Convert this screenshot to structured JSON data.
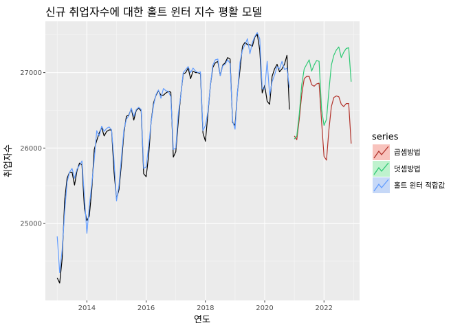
{
  "chart_data": {
    "type": "line",
    "title": "신규 취업자수에 대한 홀트 윈터 지수 평활 모델",
    "xlabel": "연도",
    "ylabel": "취업자수",
    "xlim": [
      2012.6,
      2023.2
    ],
    "ylim": [
      23980,
      27680
    ],
    "x_ticks": [
      2014,
      2016,
      2018,
      2020,
      2022
    ],
    "y_ticks": [
      25000,
      26000,
      27000
    ],
    "grid": true,
    "legend": {
      "title": "series",
      "position": "right",
      "entries": [
        "곱셈방법",
        "덧셈방법",
        "홀트 윈터 적합값"
      ]
    },
    "series": [
      {
        "key": "observed",
        "color": "#000000",
        "x_start": 2013.0,
        "x_step": 0.08333,
        "values": [
          24280,
          24210,
          24530,
          25300,
          25600,
          25680,
          25680,
          25510,
          25700,
          25800,
          25780,
          25200,
          25040,
          25100,
          25450,
          25980,
          26100,
          26200,
          26270,
          26160,
          26220,
          26240,
          26240,
          25680,
          25330,
          25450,
          25800,
          26200,
          26420,
          26440,
          26520,
          26370,
          26500,
          26530,
          26490,
          25660,
          25620,
          25900,
          26350,
          26600,
          26700,
          26760,
          26700,
          26700,
          26730,
          26750,
          26740,
          25880,
          25950,
          26350,
          26700,
          26980,
          27000,
          27060,
          26920,
          27020,
          27000,
          27000,
          26980,
          26200,
          26090,
          26450,
          26830,
          27070,
          27130,
          27150,
          26960,
          27100,
          27130,
          27200,
          27180,
          26340,
          26300,
          26750,
          27040,
          27350,
          27400,
          27370,
          27370,
          27350,
          27470,
          27510,
          27300,
          26730,
          26830,
          26620,
          26580,
          26950,
          27050,
          27110,
          27010,
          27050,
          27110,
          27230,
          26510
        ]
      },
      {
        "key": "fitted",
        "name": "홀트 윈터 적합값",
        "color": "#619CFF",
        "x_start": 2013.0,
        "x_step": 0.08333,
        "values": [
          24830,
          24350,
          24650,
          25150,
          25550,
          25680,
          25730,
          25600,
          25720,
          25770,
          25830,
          25350,
          24870,
          25230,
          25520,
          25850,
          26230,
          26160,
          26290,
          26220,
          26260,
          26280,
          26240,
          25830,
          25300,
          25510,
          25880,
          26240,
          26380,
          26430,
          26530,
          26420,
          26510,
          26540,
          26510,
          25730,
          25750,
          26030,
          26340,
          26570,
          26710,
          26770,
          26660,
          26790,
          26760,
          26750,
          26680,
          25980,
          26000,
          26450,
          26690,
          27000,
          27040,
          27080,
          27000,
          27060,
          27020,
          27000,
          27010,
          26230,
          26300,
          26480,
          26830,
          27100,
          27170,
          27180,
          26960,
          27090,
          27110,
          27170,
          27120,
          26360,
          26250,
          26740,
          27140,
          27300,
          27370,
          27450,
          27250,
          27400,
          27480,
          27530,
          27450,
          26790,
          26780,
          27150,
          26700,
          26880,
          26970,
          27080,
          27050,
          27150,
          27040,
          27060,
          26800
        ]
      },
      {
        "key": "multiplicative",
        "name": "곱셈방법",
        "color": "#B2322A",
        "x_start": 2021.0,
        "x_step": 0.08333,
        "values": [
          26160,
          26110,
          26380,
          26710,
          26920,
          26950,
          26950,
          26840,
          26820,
          26850,
          26860,
          26360,
          25890,
          25840,
          26240,
          26550,
          26670,
          26690,
          26680,
          26580,
          26550,
          26590,
          26590,
          26060
        ]
      },
      {
        "key": "additive",
        "name": "덧셈방법",
        "color": "#2DC973",
        "x_start": 2021.0,
        "x_step": 0.08333,
        "values": [
          26120,
          26160,
          26450,
          26840,
          27050,
          27110,
          27170,
          27020,
          27100,
          27160,
          27150,
          26520,
          26300,
          26380,
          26760,
          27100,
          27230,
          27300,
          27340,
          27200,
          27270,
          27320,
          27330,
          26880
        ]
      }
    ]
  }
}
